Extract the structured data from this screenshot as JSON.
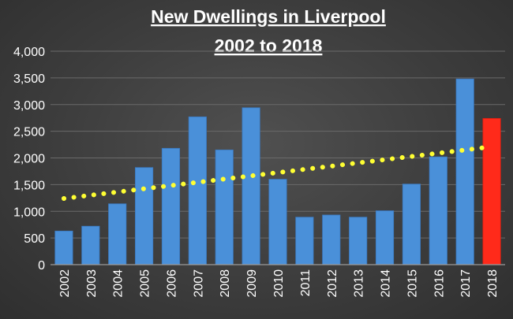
{
  "chart_data": {
    "type": "bar",
    "title": "New Dwellings in Liverpool",
    "subtitle": "2002 to 2018",
    "xlabel": "",
    "ylabel": "",
    "ylim": [
      0,
      4000
    ],
    "yticks": [
      0,
      500,
      1000,
      1500,
      2000,
      2500,
      3000,
      3500,
      4000
    ],
    "ytick_labels": [
      "0",
      "500",
      "1,000",
      "1,500",
      "2,000",
      "2,500",
      "3,000",
      "3,500",
      "4,000"
    ],
    "grid": true,
    "legend": "none",
    "categories": [
      "2002",
      "2003",
      "2004",
      "2005",
      "2006",
      "2007",
      "2008",
      "2009",
      "2010",
      "2011",
      "2012",
      "2013",
      "2014",
      "2015",
      "2016",
      "2017",
      "2018"
    ],
    "values": [
      630,
      720,
      1140,
      1820,
      2180,
      2770,
      2150,
      2940,
      1600,
      890,
      930,
      890,
      1010,
      1510,
      2020,
      3480,
      2740
    ],
    "bar_color": "#4a90d9",
    "highlight_color": "#ff2a1a",
    "highlight_category": "2018",
    "trendline": {
      "type": "linear",
      "style": "dotted",
      "color": "#ffff33",
      "start": 1240,
      "end": 2210
    }
  }
}
